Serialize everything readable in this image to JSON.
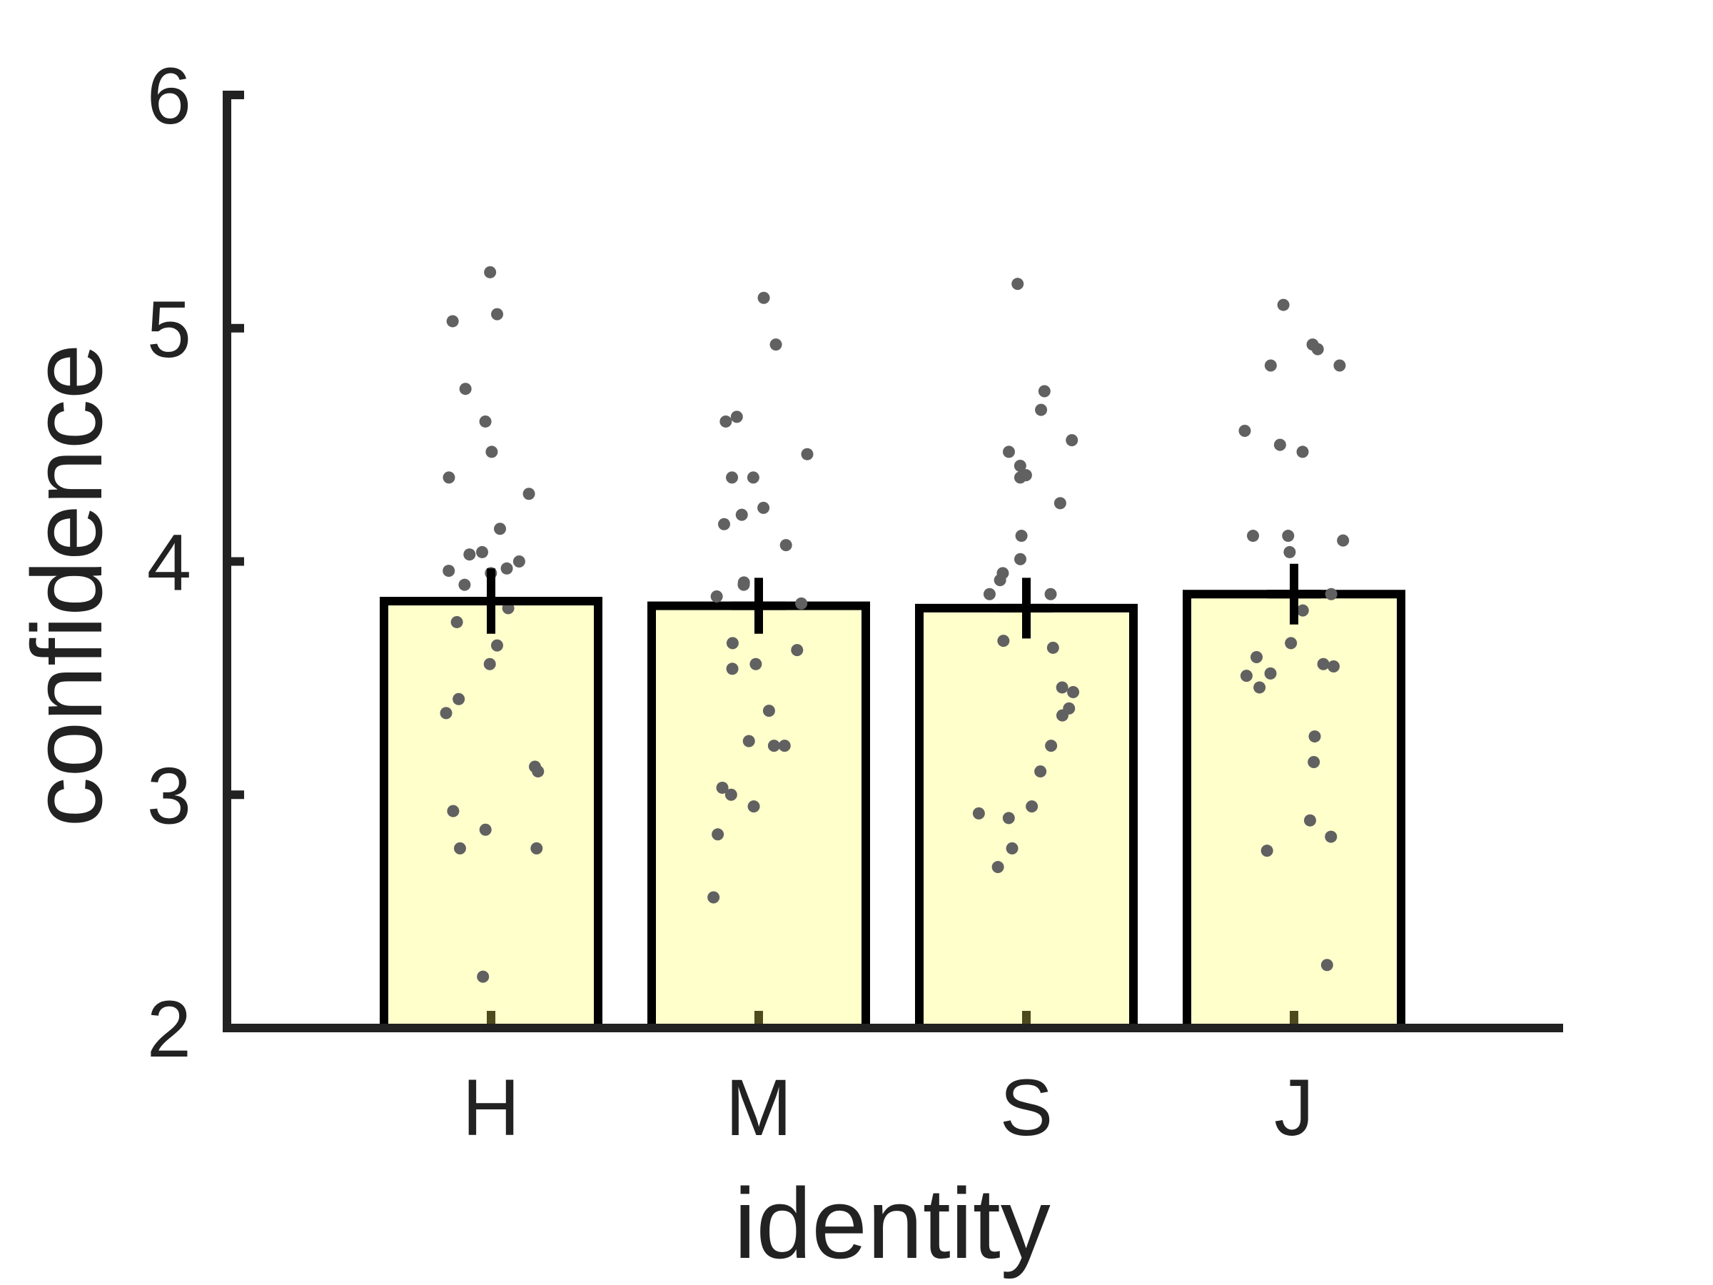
{
  "chart_data": {
    "type": "bar",
    "title": "",
    "xlabel": "identity",
    "ylabel": "confidence",
    "categories": [
      "H",
      "M",
      "S",
      "J"
    ],
    "values": [
      3.83,
      3.81,
      3.8,
      3.86
    ],
    "error": [
      0.14,
      0.12,
      0.13,
      0.13
    ],
    "ylim": [
      2,
      6
    ],
    "yticks": [
      2,
      3,
      4,
      5,
      6
    ],
    "grid": false,
    "legend": "none",
    "colors": {
      "bar_fill": "#ffffcc",
      "bar_edge": "#000000",
      "points": "#616161",
      "axis": "#222222",
      "errorbar": "#000000"
    },
    "points": [
      [
        5.24,
        5.06,
        5.03,
        4.74,
        4.6,
        4.47,
        4.36,
        4.29,
        4.14,
        4.04,
        4.03,
        4.0,
        3.97,
        3.96,
        3.95,
        3.9,
        3.8,
        3.74,
        3.64,
        3.56,
        3.41,
        3.35,
        3.12,
        3.1,
        2.93,
        2.85,
        2.77,
        2.77,
        2.22
      ],
      [
        5.13,
        4.93,
        4.62,
        4.6,
        4.46,
        4.36,
        4.36,
        4.23,
        4.2,
        4.16,
        4.07,
        3.91,
        3.9,
        3.85,
        3.82,
        3.65,
        3.62,
        3.56,
        3.54,
        3.36,
        3.23,
        3.21,
        3.21,
        3.03,
        3.0,
        2.95,
        2.83,
        2.56
      ],
      [
        5.19,
        4.73,
        4.65,
        4.52,
        4.47,
        4.41,
        4.37,
        4.36,
        4.25,
        4.11,
        4.01,
        3.95,
        3.92,
        3.86,
        3.86,
        3.66,
        3.63,
        3.46,
        3.44,
        3.37,
        3.34,
        3.21,
        3.1,
        2.95,
        2.92,
        2.9,
        2.77,
        2.69
      ],
      [
        5.1,
        4.93,
        4.91,
        4.84,
        4.84,
        4.56,
        4.5,
        4.47,
        4.11,
        4.11,
        4.09,
        4.04,
        3.86,
        3.79,
        3.65,
        3.59,
        3.56,
        3.55,
        3.52,
        3.51,
        3.46,
        3.25,
        3.14,
        2.89,
        2.82,
        2.76,
        2.27
      ]
    ]
  }
}
